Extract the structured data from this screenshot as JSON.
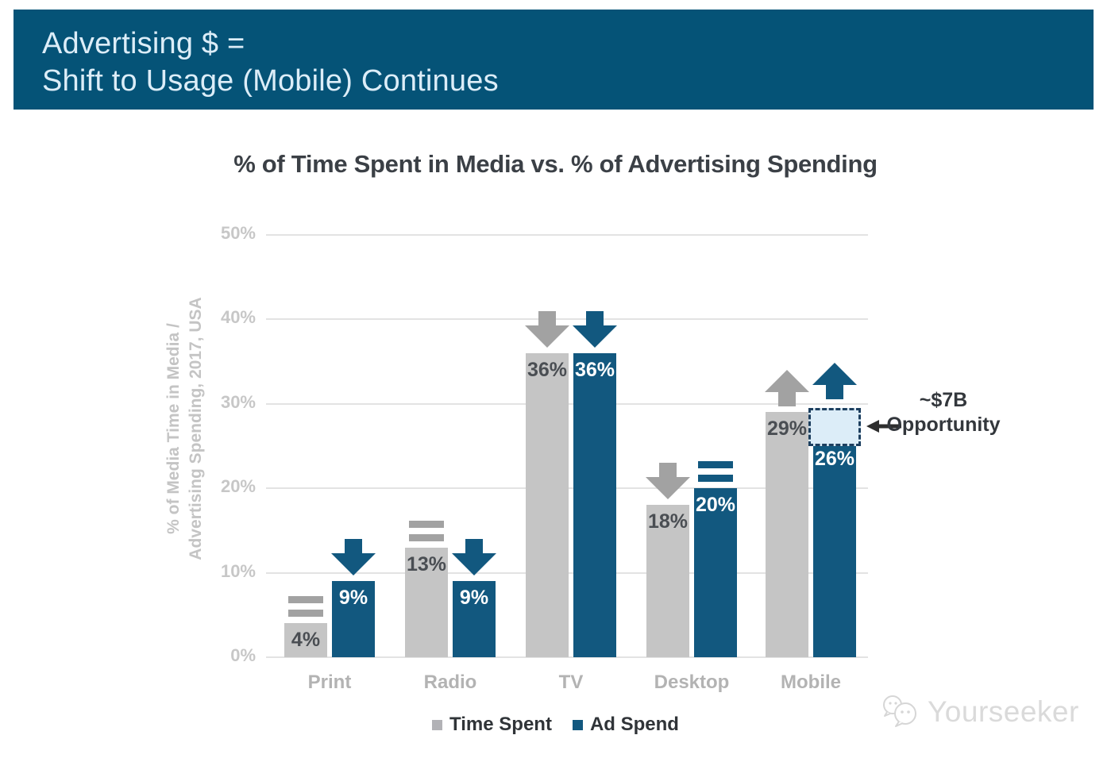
{
  "banner": {
    "line1": "Advertising $ =",
    "line2": "Shift to Usage (Mobile) Continues",
    "bg_color": "#055377",
    "text_color": "#dcedf8"
  },
  "chart_data": {
    "type": "bar",
    "title": "% of Time Spent in Media vs. % of Advertising Spending",
    "ylabel_lines": [
      "% of Media Time in Media /",
      "Advertising Spending, 2017, USA"
    ],
    "categories": [
      "Print",
      "Radio",
      "TV",
      "Desktop",
      "Mobile"
    ],
    "series": [
      {
        "name": "Time Spent",
        "color": "#c5c5c5",
        "value_label_color": "#4a4e53",
        "indicator_color": "#a2a2a2",
        "values": [
          4,
          13,
          36,
          18,
          29
        ],
        "trend": [
          "flat",
          "flat",
          "down",
          "down",
          "up"
        ]
      },
      {
        "name": "Ad Spend",
        "color": "#12587f",
        "value_label_color": "#ffffff",
        "indicator_color": "#12587f",
        "values": [
          9,
          9,
          36,
          20,
          26
        ],
        "trend": [
          "down",
          "down",
          "down",
          "flat",
          "up"
        ]
      }
    ],
    "y_ticks": [
      "0%",
      "10%",
      "20%",
      "30%",
      "40%",
      "50%"
    ],
    "ylim": [
      0,
      50
    ],
    "grid": true,
    "legend_position": "bottom",
    "annotation": {
      "line1": "~$7B",
      "line2": "Opportunity",
      "applies_to_series": 1,
      "applies_to_category": 4,
      "box_from_pct": 26,
      "box_to_pct": 29.5,
      "box_fill": "#dcedf8",
      "box_border": "#1d3f5f",
      "arrow_color": "#2e2e2e"
    }
  },
  "legend": {
    "items": [
      {
        "label": "Time Spent",
        "color": "#b2b2b6"
      },
      {
        "label": "Ad Spend",
        "color": "#12587f"
      }
    ]
  },
  "watermark": {
    "text": "Yourseeker"
  }
}
